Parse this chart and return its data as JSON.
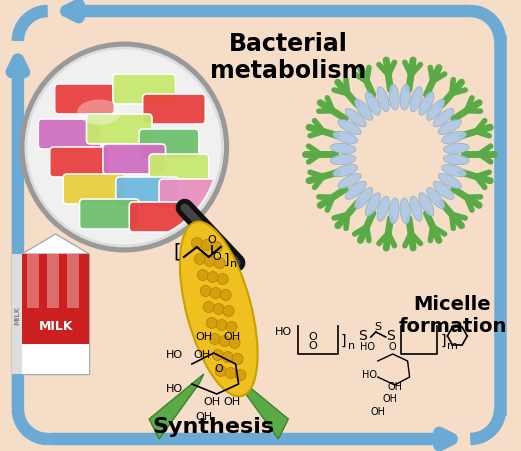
{
  "background_color": "#f5ddc8",
  "arrow_color": "#6aaad4",
  "fig_width": 5.21,
  "fig_height": 4.52,
  "dpi": 100,
  "text_bacterial_metabolism": "Bacterial\nmetabolism",
  "text_synthesis": "Synthesis",
  "text_micelle": "Micelle\nformation",
  "micelle_blue": "#adc8e8",
  "micelle_green": "#5aab46",
  "candy_colors_pills": [
    "#e84040",
    "#e84040",
    "#c8e060",
    "#c8e060",
    "#7ecf7e",
    "#7ecf7e",
    "#d070c8",
    "#d070c8",
    "#e8d040",
    "#e8d040",
    "#70b8e0",
    "#70b8e0",
    "#e890c0",
    "#e890c0"
  ],
  "milk_red": "#cc2020",
  "corn_yellow": "#f0c020",
  "corn_dark": "#d4a010"
}
